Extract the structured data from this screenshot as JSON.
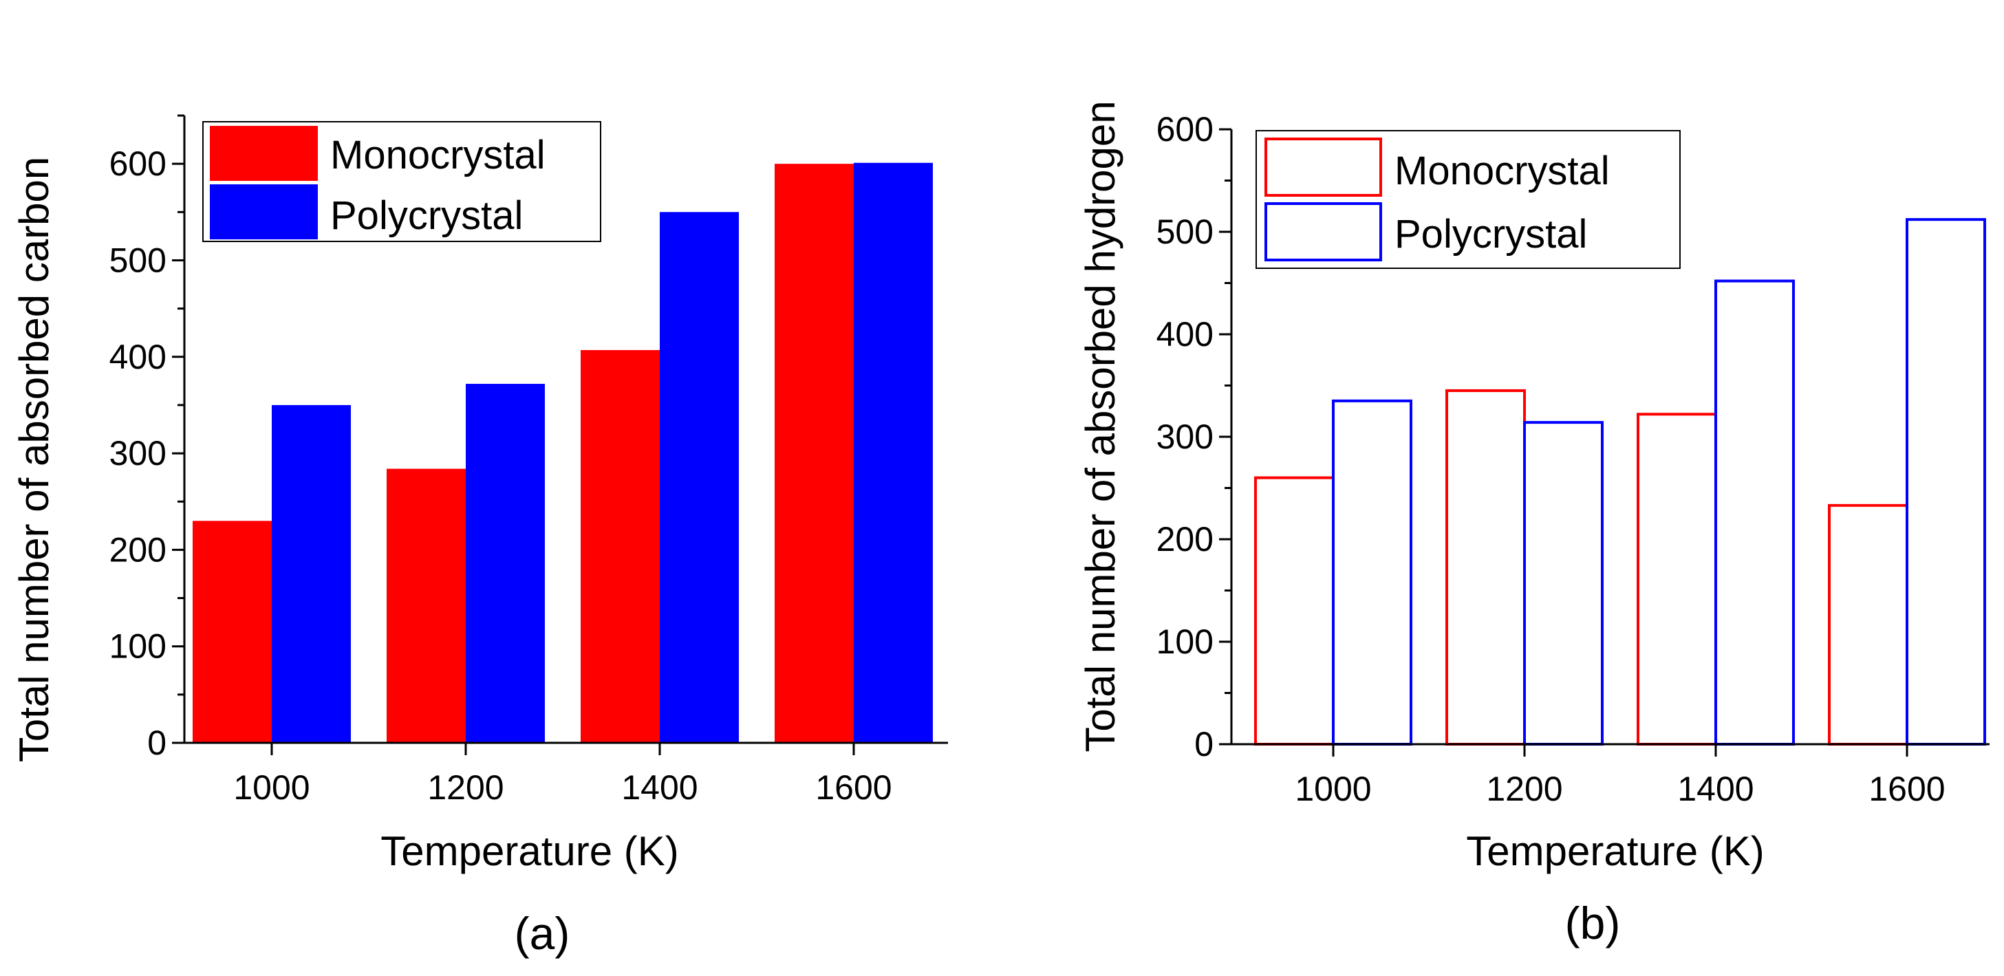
{
  "chart_data": [
    {
      "id": "a",
      "type": "bar",
      "style": "filled",
      "panel_label": "(a)",
      "xlabel": "Temperature (K)",
      "ylabel": "Total number of absorbed carbon",
      "categories": [
        "1000",
        "1200",
        "1400",
        "1600"
      ],
      "ylim": [
        0,
        650
      ],
      "yticks": [
        0,
        100,
        200,
        300,
        400,
        500,
        600
      ],
      "yticks_minor": [
        50,
        150,
        250,
        350,
        450,
        550,
        650
      ],
      "legend_position": "top-left",
      "series": [
        {
          "name": "Monocrystal",
          "color": "#ff0000",
          "values": [
            230,
            284,
            407,
            600
          ]
        },
        {
          "name": "Polycrystal",
          "color": "#0000ff",
          "values": [
            350,
            372,
            550,
            601
          ]
        }
      ]
    },
    {
      "id": "b",
      "type": "bar",
      "style": "outline",
      "panel_label": "(b)",
      "xlabel": "Temperature (K)",
      "ylabel": "Total number of absorbed hydrogen",
      "categories": [
        "1000",
        "1200",
        "1400",
        "1600"
      ],
      "ylim": [
        0,
        600
      ],
      "yticks": [
        0,
        100,
        200,
        300,
        400,
        500,
        600
      ],
      "yticks_minor": [
        50,
        150,
        250,
        350,
        450,
        550
      ],
      "legend_position": "top-left",
      "series": [
        {
          "name": "Monocrystal",
          "color": "#ff0000",
          "values": [
            260,
            345,
            322,
            233
          ]
        },
        {
          "name": "Polycrystal",
          "color": "#0000ff",
          "values": [
            335,
            314,
            452,
            512
          ]
        }
      ]
    }
  ]
}
